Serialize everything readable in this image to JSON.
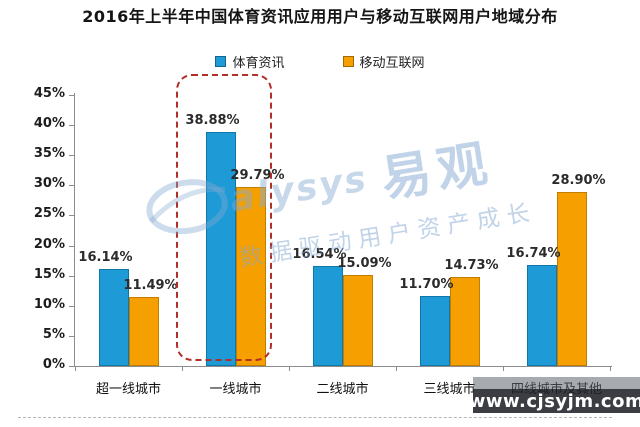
{
  "title": "2016年上半年中国体育资讯应用用户与移动互联网用户地域分布",
  "chart_data": {
    "type": "bar",
    "title": "2016年上半年中国体育资讯应用用户与移动互联网用户地域分布",
    "categories": [
      "超一线城市",
      "一线城市",
      "二线城市",
      "三线城市",
      "四线城市及其他"
    ],
    "series": [
      {
        "name": "体育资讯",
        "color": "#1E9BD6",
        "border_color": "#1176A8",
        "values": [
          16.14,
          38.88,
          16.54,
          11.7,
          16.74
        ]
      },
      {
        "name": "移动互联网",
        "color": "#F5A000",
        "border_color": "#C27D00",
        "values": [
          11.49,
          29.79,
          15.09,
          14.73,
          28.9
        ]
      }
    ],
    "xlabel": "",
    "ylabel": "",
    "ylim": [
      0,
      45
    ],
    "ytick_step": 5,
    "ytick_suffix": "%",
    "value_label_suffix": "%",
    "legend_position": "top",
    "grid": false,
    "highlight": {
      "category": "一线城市",
      "category_index": 1,
      "style": "red dashed rounded box"
    }
  },
  "watermark": {
    "logo_text": "alysys",
    "brand_text": "易观",
    "slogan": "数据驱动用户资产成长"
  },
  "footer_banner": {
    "url": "www.cjsyjm.com"
  },
  "colors": {
    "axis": "#8C8C8C",
    "highlight_border": "#B03028",
    "value_label": "#2B2B2B",
    "watermark": "#82A8D2"
  }
}
